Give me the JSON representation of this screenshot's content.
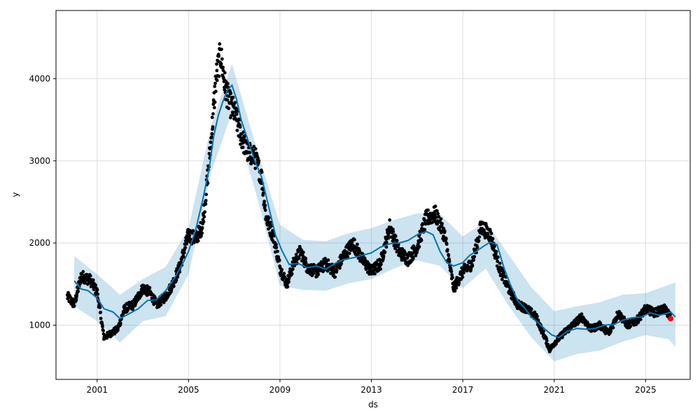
{
  "chart_data": {
    "type": "line",
    "title": "",
    "xlabel": "ds",
    "ylabel": "y",
    "xlim": [
      1999.2,
      2026.95
    ],
    "ylim": [
      340,
      4830
    ],
    "grid": true,
    "x_ticks": [
      2001,
      2005,
      2009,
      2013,
      2017,
      2021,
      2025
    ],
    "x_tick_labels": [
      "2001",
      "2005",
      "2009",
      "2013",
      "2017",
      "2021",
      "2025"
    ],
    "y_ticks": [
      1000,
      2000,
      3000,
      4000
    ],
    "y_tick_labels": [
      "1000",
      "2000",
      "3000",
      "4000"
    ],
    "colors": {
      "forecast": "#0072B2",
      "uncertainty": "#0072B2",
      "observed": "#000000",
      "highlight": "#ff0000"
    },
    "forecast": {
      "x": [
        2000.0,
        2000.3,
        2000.6,
        2001.0,
        2001.3,
        2001.7,
        2002.0,
        2002.4,
        2002.8,
        2003.2,
        2003.6,
        2004.0,
        2004.4,
        2004.8,
        2005.0,
        2005.3,
        2005.6,
        2005.9,
        2006.1,
        2006.3,
        2006.5,
        2006.7,
        2006.9,
        2007.1,
        2007.3,
        2007.6,
        2007.9,
        2008.2,
        2008.5,
        2008.8,
        2009.1,
        2009.4,
        2009.8,
        2010.2,
        2010.6,
        2011.0,
        2011.4,
        2011.8,
        2012.2,
        2012.6,
        2013.0,
        2013.4,
        2013.8,
        2014.2,
        2014.6,
        2015.0,
        2015.4,
        2015.7,
        2016.0,
        2016.3,
        2016.6,
        2017.0,
        2017.3,
        2017.6,
        2017.9,
        2018.2,
        2018.5,
        2018.8,
        2019.1,
        2019.4,
        2019.7,
        2020.0,
        2020.3,
        2020.6,
        2020.9,
        2021.2,
        2021.6,
        2022.0,
        2022.4,
        2022.8,
        2023.2,
        2023.6,
        2024.0,
        2024.4,
        2024.8,
        2025.2,
        2025.6,
        2025.9,
        2026.1,
        2026.3
      ],
      "y": [
        1540,
        1440,
        1420,
        1330,
        1200,
        1160,
        1080,
        1140,
        1200,
        1300,
        1310,
        1420,
        1580,
        1780,
        1900,
        2150,
        2500,
        2900,
        3300,
        3550,
        3720,
        3860,
        3920,
        3750,
        3500,
        3250,
        3000,
        2800,
        2450,
        2100,
        1900,
        1740,
        1750,
        1700,
        1720,
        1680,
        1750,
        1800,
        1820,
        1850,
        1880,
        1950,
        1990,
        2000,
        2030,
        2100,
        2140,
        2100,
        1900,
        1760,
        1720,
        1760,
        1850,
        1900,
        1960,
        2010,
        1980,
        1700,
        1480,
        1300,
        1210,
        1100,
        1030,
        950,
        880,
        850,
        930,
        960,
        950,
        960,
        1000,
        1010,
        1060,
        1090,
        1100,
        1150,
        1120,
        1140,
        1160,
        1100
      ]
    },
    "uncertainty": {
      "x": [
        2000.0,
        2001.0,
        2002.0,
        2003.0,
        2004.0,
        2005.0,
        2006.0,
        2006.9,
        2008.0,
        2009.0,
        2010.0,
        2011.0,
        2012.0,
        2013.0,
        2014.0,
        2015.0,
        2016.0,
        2017.0,
        2018.0,
        2019.0,
        2020.0,
        2021.0,
        2022.0,
        2023.0,
        2024.0,
        2025.0,
        2026.0,
        2026.3
      ],
      "upper": [
        1840,
        1620,
        1370,
        1560,
        1710,
        2180,
        3440,
        4180,
        3130,
        2220,
        2040,
        2020,
        2120,
        2180,
        2280,
        2360,
        2350,
        2080,
        2260,
        1860,
        1460,
        1170,
        1230,
        1280,
        1370,
        1390,
        1490,
        1520
      ],
      "lower": [
        1230,
        1050,
        790,
        1050,
        1110,
        1620,
        2870,
        3590,
        2560,
        1480,
        1430,
        1420,
        1510,
        1560,
        1690,
        1790,
        1720,
        1450,
        1690,
        1240,
        850,
        560,
        650,
        690,
        800,
        880,
        830,
        740
      ]
    },
    "observed_waypoints": {
      "x": [
        1999.7,
        2000.0,
        2000.3,
        2000.7,
        2001.0,
        2001.3,
        2001.6,
        2001.9,
        2002.2,
        2002.6,
        2003.0,
        2003.3,
        2003.6,
        2004.0,
        2004.3,
        2004.6,
        2005.0,
        2005.3,
        2005.6,
        2005.8,
        2006.0,
        2006.2,
        2006.4,
        2006.6,
        2006.8,
        2007.0,
        2007.3,
        2007.6,
        2007.9,
        2008.2,
        2008.4,
        2008.7,
        2009.0,
        2009.3,
        2009.6,
        2009.9,
        2010.2,
        2010.6,
        2011.0,
        2011.4,
        2011.8,
        2012.2,
        2012.6,
        2013.0,
        2013.4,
        2013.8,
        2014.2,
        2014.6,
        2015.0,
        2015.4,
        2015.8,
        2016.2,
        2016.6,
        2017.0,
        2017.4,
        2017.8,
        2018.2,
        2018.6,
        2019.0,
        2019.4,
        2019.8,
        2020.2,
        2020.6,
        2020.8,
        2021.0,
        2021.4,
        2021.8,
        2022.2,
        2022.6,
        2023.0,
        2023.4,
        2023.8,
        2024.2,
        2024.6,
        2025.0,
        2025.4,
        2025.8,
        2026.1
      ],
      "y": [
        1350,
        1250,
        1600,
        1550,
        1400,
        850,
        900,
        950,
        1200,
        1250,
        1450,
        1400,
        1250,
        1350,
        1500,
        1700,
        2100,
        2050,
        2200,
        2700,
        3300,
        4000,
        4300,
        3900,
        3700,
        3600,
        3300,
        3100,
        3050,
        2800,
        2300,
        2100,
        1700,
        1500,
        1750,
        1900,
        1700,
        1650,
        1750,
        1650,
        1850,
        2000,
        1800,
        1650,
        1750,
        2200,
        1900,
        1800,
        1950,
        2300,
        2350,
        2100,
        1450,
        1650,
        1750,
        2200,
        2100,
        1700,
        1450,
        1250,
        1200,
        1100,
        850,
        700,
        780,
        900,
        1000,
        1100,
        950,
        1000,
        900,
        1150,
        1000,
        1050,
        1200,
        1150,
        1200,
        1100
      ]
    },
    "observed_noise": 65,
    "highlight_point": {
      "x": 2026.1,
      "y": 1080
    }
  }
}
